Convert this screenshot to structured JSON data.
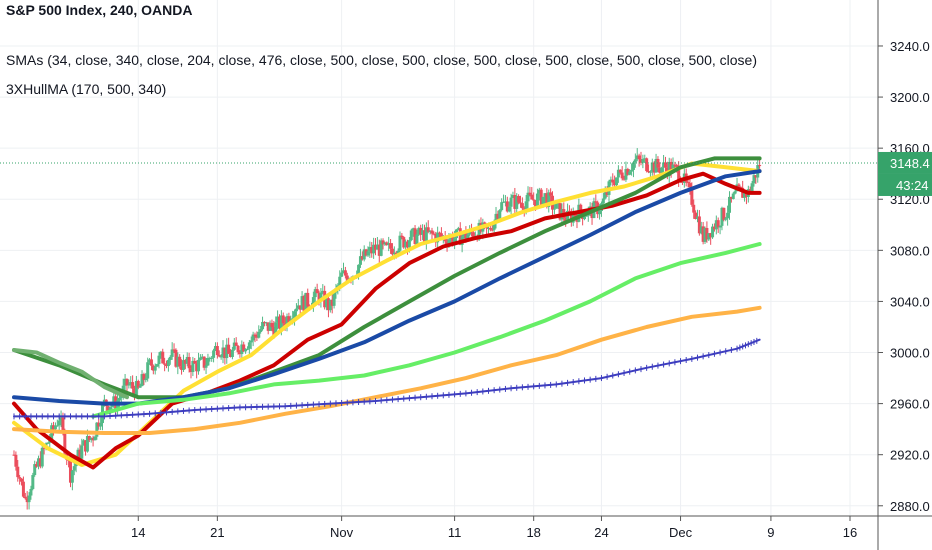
{
  "window": {
    "title": "S&P 500 Index, 240, OANDA"
  },
  "legend": {
    "title": "S&P 500 Index, 240, OANDA",
    "sma_line": "SMAs (34, close, 340, close, 204, close, 476, close, 500, close, 500, close, 500, close, 500, close, 500, close, 500, close)",
    "hull_line": "3XHullMA (170, 500, 340)"
  },
  "price_tag": {
    "value": "3148.4",
    "color": "#36a36a"
  },
  "countdown_tag": {
    "value": "43:24",
    "color": "#36a36a"
  },
  "colors": {
    "up_candle": "#53b987",
    "down_candle": "#eb4d5c",
    "sma_dark_green": "#3d8f3d",
    "sma_blue": "#1a4aa6",
    "sma_yellow": "#ffe033",
    "sma_red": "#cc0000",
    "sma_light_green": "#66ee66",
    "sma_orange": "#ffb347",
    "sma_crossed": "#3d3dbf",
    "sma_muted_green": "#70b070",
    "grid": "#eef0f3",
    "axis_text": "#131722"
  },
  "chart_data": {
    "type": "line",
    "title": "S&P 500 Index, 240, OANDA",
    "xlabel": "",
    "ylabel": "",
    "ylim": [
      2872,
      3276
    ],
    "grid": true,
    "legend_position": "top-left",
    "y_ticks": [
      "3240.0",
      "3200.0",
      "3160.0",
      "3120.0",
      "3080.0",
      "3040.0",
      "3000.0",
      "2960.0",
      "2920.0",
      "2880.0"
    ],
    "x_ticks": [
      {
        "label": "14",
        "date": "2019-10-14"
      },
      {
        "label": "21",
        "date": "2019-10-21"
      },
      {
        "label": "Nov",
        "date": "2019-11-01"
      },
      {
        "label": "11",
        "date": "2019-11-11"
      },
      {
        "label": "18",
        "date": "2019-11-18"
      },
      {
        "label": "24",
        "date": "2019-11-24"
      },
      {
        "label": "Dec",
        "date": "2019-12-01"
      },
      {
        "label": "9",
        "date": "2019-12-09"
      },
      {
        "label": "16",
        "date": "2019-12-16"
      }
    ],
    "current_price": 3148.4,
    "close_series": {
      "name": "",
      "points": [
        [
          "2019-10-03",
          2920
        ],
        [
          "2019-10-04",
          2885
        ],
        [
          "2019-10-05",
          2910
        ],
        [
          "2019-10-06",
          2930
        ],
        [
          "2019-10-07",
          2950
        ],
        [
          "2019-10-08",
          2905
        ],
        [
          "2019-10-09",
          2925
        ],
        [
          "2019-10-10",
          2935
        ],
        [
          "2019-10-11",
          2960
        ],
        [
          "2019-10-12",
          2960
        ],
        [
          "2019-10-13",
          2975
        ],
        [
          "2019-10-14",
          2970
        ],
        [
          "2019-10-15",
          2990
        ],
        [
          "2019-10-16",
          2995
        ],
        [
          "2019-10-17",
          2997
        ],
        [
          "2019-10-18",
          2990
        ],
        [
          "2019-10-19",
          2990
        ],
        [
          "2019-10-20",
          2992
        ],
        [
          "2019-10-21",
          3005
        ],
        [
          "2019-10-22",
          2998
        ],
        [
          "2019-10-23",
          3005
        ],
        [
          "2019-10-24",
          3010
        ],
        [
          "2019-10-25",
          3020
        ],
        [
          "2019-10-26",
          3020
        ],
        [
          "2019-10-27",
          3025
        ],
        [
          "2019-10-28",
          3038
        ],
        [
          "2019-10-29",
          3040
        ],
        [
          "2019-10-30",
          3045
        ],
        [
          "2019-10-31",
          3035
        ],
        [
          "2019-11-01",
          3060
        ],
        [
          "2019-11-02",
          3062
        ],
        [
          "2019-11-03",
          3075
        ],
        [
          "2019-11-04",
          3082
        ],
        [
          "2019-11-05",
          3080
        ],
        [
          "2019-11-06",
          3085
        ],
        [
          "2019-11-07",
          3090
        ],
        [
          "2019-11-08",
          3092
        ],
        [
          "2019-11-09",
          3092
        ],
        [
          "2019-11-10",
          3090
        ],
        [
          "2019-11-11",
          3090
        ],
        [
          "2019-11-12",
          3092
        ],
        [
          "2019-11-13",
          3095
        ],
        [
          "2019-11-14",
          3095
        ],
        [
          "2019-11-15",
          3115
        ],
        [
          "2019-11-16",
          3118
        ],
        [
          "2019-11-17",
          3118
        ],
        [
          "2019-11-18",
          3120
        ],
        [
          "2019-11-19",
          3122
        ],
        [
          "2019-11-20",
          3112
        ],
        [
          "2019-11-21",
          3105
        ],
        [
          "2019-11-22",
          3110
        ],
        [
          "2019-11-23",
          3110
        ],
        [
          "2019-11-24",
          3115
        ],
        [
          "2019-11-25",
          3135
        ],
        [
          "2019-11-26",
          3142
        ],
        [
          "2019-11-27",
          3150
        ],
        [
          "2019-11-28",
          3148
        ],
        [
          "2019-11-29",
          3145
        ],
        [
          "2019-11-30",
          3145
        ],
        [
          "2019-12-01",
          3140
        ],
        [
          "2019-12-02",
          3120
        ],
        [
          "2019-12-03",
          3090
        ],
        [
          "2019-12-04",
          3100
        ],
        [
          "2019-12-05",
          3110
        ],
        [
          "2019-12-06",
          3125
        ],
        [
          "2019-12-07",
          3125
        ],
        [
          "2019-12-08",
          3148
        ]
      ]
    },
    "series": [
      {
        "name": "",
        "color_key": "sma_yellow",
        "style": "line",
        "points": [
          [
            "2019-10-03",
            2945
          ],
          [
            "2019-10-06",
            2925
          ],
          [
            "2019-10-09",
            2912
          ],
          [
            "2019-10-12",
            2920
          ],
          [
            "2019-10-15",
            2945
          ],
          [
            "2019-10-18",
            2970
          ],
          [
            "2019-10-21",
            2985
          ],
          [
            "2019-10-24",
            2998
          ],
          [
            "2019-10-27",
            3020
          ],
          [
            "2019-10-30",
            3040
          ],
          [
            "2019-11-02",
            3058
          ],
          [
            "2019-11-05",
            3072
          ],
          [
            "2019-11-08",
            3085
          ],
          [
            "2019-11-11",
            3092
          ],
          [
            "2019-11-14",
            3100
          ],
          [
            "2019-11-17",
            3110
          ],
          [
            "2019-11-20",
            3118
          ],
          [
            "2019-11-23",
            3125
          ],
          [
            "2019-11-26",
            3130
          ],
          [
            "2019-11-29",
            3138
          ],
          [
            "2019-12-02",
            3148
          ],
          [
            "2019-12-05",
            3145
          ],
          [
            "2019-12-08",
            3142
          ]
        ]
      },
      {
        "name": "",
        "color_key": "sma_red",
        "style": "line",
        "points": [
          [
            "2019-10-03",
            2960
          ],
          [
            "2019-10-05",
            2940
          ],
          [
            "2019-10-08",
            2920
          ],
          [
            "2019-10-10",
            2910
          ],
          [
            "2019-10-12",
            2925
          ],
          [
            "2019-10-14",
            2935
          ],
          [
            "2019-10-17",
            2960
          ],
          [
            "2019-10-20",
            2968
          ],
          [
            "2019-10-23",
            2978
          ],
          [
            "2019-10-26",
            2990
          ],
          [
            "2019-10-29",
            3010
          ],
          [
            "2019-11-01",
            3022
          ],
          [
            "2019-11-04",
            3050
          ],
          [
            "2019-11-07",
            3070
          ],
          [
            "2019-11-10",
            3083
          ],
          [
            "2019-11-13",
            3090
          ],
          [
            "2019-11-16",
            3095
          ],
          [
            "2019-11-19",
            3105
          ],
          [
            "2019-11-22",
            3110
          ],
          [
            "2019-11-25",
            3115
          ],
          [
            "2019-11-28",
            3123
          ],
          [
            "2019-12-01",
            3135
          ],
          [
            "2019-12-03",
            3140
          ],
          [
            "2019-12-05",
            3132
          ],
          [
            "2019-12-07",
            3125
          ],
          [
            "2019-12-08",
            3125
          ]
        ]
      },
      {
        "name": "",
        "color_key": "sma_dark_green",
        "style": "line",
        "points": [
          [
            "2019-10-03",
            3002
          ],
          [
            "2019-10-07",
            2990
          ],
          [
            "2019-10-11",
            2975
          ],
          [
            "2019-10-14",
            2965
          ],
          [
            "2019-10-18",
            2965
          ],
          [
            "2019-10-22",
            2972
          ],
          [
            "2019-10-26",
            2985
          ],
          [
            "2019-10-30",
            2998
          ],
          [
            "2019-11-03",
            3020
          ],
          [
            "2019-11-07",
            3040
          ],
          [
            "2019-11-11",
            3060
          ],
          [
            "2019-11-15",
            3078
          ],
          [
            "2019-11-19",
            3095
          ],
          [
            "2019-11-23",
            3110
          ],
          [
            "2019-11-27",
            3125
          ],
          [
            "2019-12-01",
            3145
          ],
          [
            "2019-12-04",
            3152
          ],
          [
            "2019-12-08",
            3152
          ]
        ]
      },
      {
        "name": "",
        "color_key": "sma_blue",
        "style": "line",
        "points": [
          [
            "2019-10-03",
            2965
          ],
          [
            "2019-10-07",
            2962
          ],
          [
            "2019-10-11",
            2960
          ],
          [
            "2019-10-14",
            2960
          ],
          [
            "2019-10-18",
            2965
          ],
          [
            "2019-10-22",
            2972
          ],
          [
            "2019-10-26",
            2983
          ],
          [
            "2019-10-30",
            2995
          ],
          [
            "2019-11-03",
            3008
          ],
          [
            "2019-11-07",
            3025
          ],
          [
            "2019-11-11",
            3040
          ],
          [
            "2019-11-15",
            3058
          ],
          [
            "2019-11-19",
            3075
          ],
          [
            "2019-11-23",
            3092
          ],
          [
            "2019-11-27",
            3110
          ],
          [
            "2019-12-01",
            3125
          ],
          [
            "2019-12-05",
            3138
          ],
          [
            "2019-12-08",
            3142
          ]
        ]
      },
      {
        "name": "",
        "color_key": "sma_light_green",
        "style": "line",
        "points": [
          [
            "2019-10-10",
            2950
          ],
          [
            "2019-10-14",
            2960
          ],
          [
            "2019-10-18",
            2963
          ],
          [
            "2019-10-22",
            2968
          ],
          [
            "2019-10-26",
            2975
          ],
          [
            "2019-10-30",
            2978
          ],
          [
            "2019-11-03",
            2982
          ],
          [
            "2019-11-07",
            2990
          ],
          [
            "2019-11-11",
            3000
          ],
          [
            "2019-11-15",
            3012
          ],
          [
            "2019-11-19",
            3025
          ],
          [
            "2019-11-23",
            3040
          ],
          [
            "2019-11-27",
            3058
          ],
          [
            "2019-12-01",
            3070
          ],
          [
            "2019-12-05",
            3078
          ],
          [
            "2019-12-08",
            3085
          ]
        ]
      },
      {
        "name": "",
        "color_key": "sma_orange",
        "style": "line",
        "points": [
          [
            "2019-10-03",
            2940
          ],
          [
            "2019-10-07",
            2938
          ],
          [
            "2019-10-11",
            2937
          ],
          [
            "2019-10-15",
            2937
          ],
          [
            "2019-10-19",
            2940
          ],
          [
            "2019-10-23",
            2945
          ],
          [
            "2019-10-27",
            2952
          ],
          [
            "2019-10-31",
            2958
          ],
          [
            "2019-11-04",
            2965
          ],
          [
            "2019-11-08",
            2972
          ],
          [
            "2019-11-12",
            2980
          ],
          [
            "2019-11-16",
            2990
          ],
          [
            "2019-11-20",
            2998
          ],
          [
            "2019-11-24",
            3010
          ],
          [
            "2019-11-28",
            3020
          ],
          [
            "2019-12-02",
            3028
          ],
          [
            "2019-12-06",
            3032
          ],
          [
            "2019-12-08",
            3035
          ]
        ]
      },
      {
        "name": "",
        "color_key": "sma_crossed",
        "style": "crossed",
        "points": [
          [
            "2019-10-03",
            2950
          ],
          [
            "2019-10-07",
            2950
          ],
          [
            "2019-10-11",
            2950
          ],
          [
            "2019-10-15",
            2952
          ],
          [
            "2019-10-19",
            2955
          ],
          [
            "2019-10-23",
            2957
          ],
          [
            "2019-10-27",
            2958
          ],
          [
            "2019-10-31",
            2960
          ],
          [
            "2019-11-04",
            2962
          ],
          [
            "2019-11-08",
            2965
          ],
          [
            "2019-11-12",
            2968
          ],
          [
            "2019-11-16",
            2972
          ],
          [
            "2019-11-20",
            2975
          ],
          [
            "2019-11-24",
            2980
          ],
          [
            "2019-11-28",
            2988
          ],
          [
            "2019-12-02",
            2995
          ],
          [
            "2019-12-06",
            3003
          ],
          [
            "2019-12-08",
            3010
          ]
        ]
      },
      {
        "name": "",
        "color_key": "sma_muted_green",
        "style": "line",
        "points": [
          [
            "2019-10-03",
            3002
          ],
          [
            "2019-10-05",
            3000
          ],
          [
            "2019-10-07",
            2992
          ],
          [
            "2019-10-09",
            2985
          ],
          [
            "2019-10-11",
            2973
          ],
          [
            "2019-10-13",
            2965
          ]
        ]
      }
    ]
  }
}
